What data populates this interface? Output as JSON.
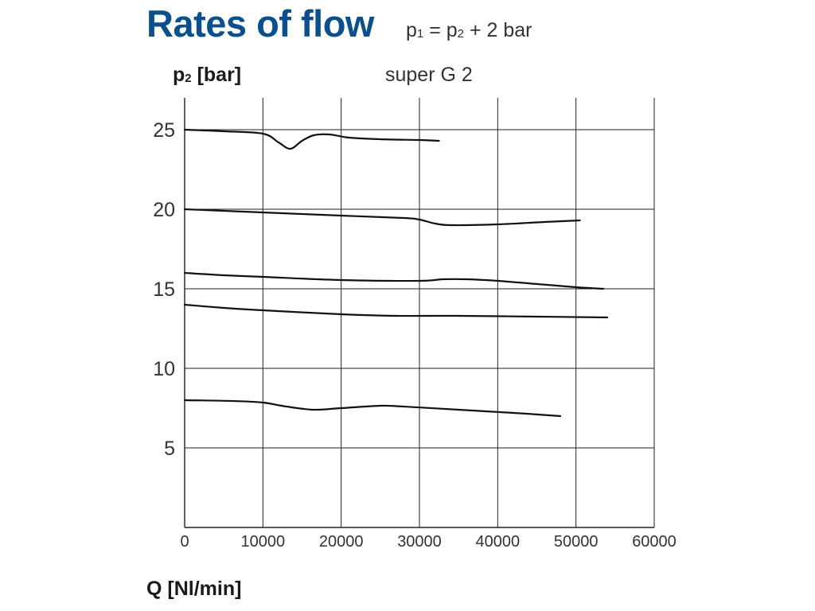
{
  "header": {
    "title": "Rates of flow",
    "formula": {
      "p1": "p",
      "s1": "1",
      "eq": " = p",
      "s2": "2",
      "rest": " + 2 bar"
    }
  },
  "chart_data": {
    "type": "line",
    "title": "Rates of flow",
    "subtitle": "super G 2",
    "ylabel_main": "p",
    "ylabel_sub": "2",
    "ylabel_unit": " [bar]",
    "xlabel": "Q [Nl/min]",
    "xlim": [
      0,
      60000
    ],
    "ylim": [
      0,
      27
    ],
    "xticks": [
      0,
      10000,
      20000,
      30000,
      40000,
      50000,
      60000
    ],
    "xtick_labels": [
      "0",
      "10000",
      "20000",
      "30000",
      "40000",
      "50000",
      "60000"
    ],
    "yticks": [
      5,
      10,
      15,
      20,
      25
    ],
    "ytick_labels": [
      "5",
      "10",
      "15",
      "20",
      "25"
    ],
    "grid": true,
    "line_color": "#111111",
    "grid_color": "#222222",
    "series": [
      {
        "x": [
          0,
          5000,
          10000,
          12000,
          13500,
          15000,
          16500,
          18500,
          21000,
          25000,
          30000,
          32500
        ],
        "y": [
          25.0,
          24.9,
          24.75,
          24.2,
          23.8,
          24.3,
          24.65,
          24.7,
          24.5,
          24.4,
          24.35,
          24.3
        ]
      },
      {
        "x": [
          0,
          5000,
          10000,
          20000,
          28000,
          30000,
          32000,
          34000,
          40000,
          46000,
          50500
        ],
        "y": [
          20.0,
          19.9,
          19.8,
          19.6,
          19.45,
          19.35,
          19.1,
          19.0,
          19.05,
          19.2,
          19.3
        ]
      },
      {
        "x": [
          0,
          5000,
          10000,
          20000,
          30000,
          33000,
          36000,
          40000,
          45000,
          50000,
          53500
        ],
        "y": [
          16.0,
          15.85,
          15.75,
          15.55,
          15.5,
          15.6,
          15.6,
          15.5,
          15.3,
          15.1,
          15.0
        ]
      },
      {
        "x": [
          0,
          5000,
          10000,
          20000,
          27000,
          35000,
          45000,
          54000
        ],
        "y": [
          14.0,
          13.8,
          13.65,
          13.4,
          13.3,
          13.3,
          13.25,
          13.2
        ]
      },
      {
        "x": [
          0,
          6000,
          10000,
          13000,
          16500,
          20000,
          25000,
          28000,
          35000,
          42000,
          48000
        ],
        "y": [
          8.0,
          7.95,
          7.85,
          7.6,
          7.4,
          7.5,
          7.65,
          7.6,
          7.4,
          7.2,
          7.0
        ]
      }
    ]
  }
}
